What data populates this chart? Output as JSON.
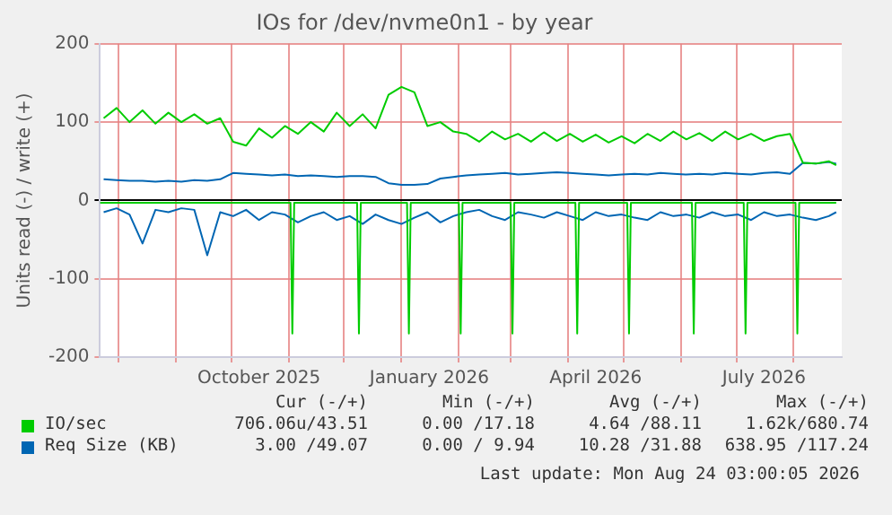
{
  "chart_data": {
    "type": "line",
    "title": "IOs for /dev/nvme0n1 - by year",
    "ylabel": "Units read (-) / write (+)",
    "x": [
      "2025-07-24",
      "2025-07-31",
      "2025-08-07",
      "2025-08-14",
      "2025-08-21",
      "2025-08-28",
      "2025-09-04",
      "2025-09-11",
      "2025-09-18",
      "2025-09-25",
      "2025-10-02",
      "2025-10-09",
      "2025-10-16",
      "2025-10-23",
      "2025-10-30",
      "2025-11-06",
      "2025-11-13",
      "2025-11-20",
      "2025-11-27",
      "2025-12-04",
      "2025-12-11",
      "2025-12-18",
      "2025-12-25",
      "2026-01-01",
      "2026-01-08",
      "2026-01-15",
      "2026-01-22",
      "2026-01-29",
      "2026-02-05",
      "2026-02-12",
      "2026-02-19",
      "2026-02-26",
      "2026-03-05",
      "2026-03-12",
      "2026-03-19",
      "2026-03-26",
      "2026-04-02",
      "2026-04-09",
      "2026-04-16",
      "2026-04-23",
      "2026-04-30",
      "2026-05-07",
      "2026-05-14",
      "2026-05-21",
      "2026-05-28",
      "2026-06-04",
      "2026-06-11",
      "2026-06-18",
      "2026-06-25",
      "2026-07-02",
      "2026-07-09",
      "2026-07-16",
      "2026-07-23",
      "2026-07-30",
      "2026-08-06",
      "2026-08-13",
      "2026-08-20",
      "2026-08-24"
    ],
    "series": [
      {
        "name": "IO/sec",
        "color": "#00cc00",
        "values": [
          105,
          118,
          100,
          115,
          98,
          112,
          100,
          110,
          98,
          105,
          75,
          70,
          92,
          80,
          95,
          85,
          100,
          88,
          112,
          95,
          110,
          92,
          135,
          145,
          138,
          95,
          100,
          88,
          85,
          75,
          88,
          78,
          85,
          75,
          87,
          76,
          85,
          75,
          84,
          74,
          82,
          73,
          85,
          76,
          88,
          78,
          86,
          76,
          88,
          78,
          85,
          76,
          82,
          85,
          48,
          47,
          50,
          45
        ]
      },
      {
        "color": "#00cc00",
        "x": [
          "2025-07-22",
          "2025-11-02",
          "2025-11-03",
          "2025-11-04",
          "2025-12-08",
          "2025-12-09",
          "2025-12-10",
          "2026-01-04",
          "2026-01-05",
          "2026-01-06",
          "2026-02-01",
          "2026-02-02",
          "2026-02-03",
          "2026-03-01",
          "2026-03-02",
          "2026-03-03",
          "2026-04-05",
          "2026-04-06",
          "2026-04-07",
          "2026-05-03",
          "2026-05-04",
          "2026-05-05",
          "2026-06-07",
          "2026-06-08",
          "2026-06-09",
          "2026-07-05",
          "2026-07-06",
          "2026-07-07",
          "2026-08-02",
          "2026-08-03",
          "2026-08-04",
          "2026-08-24"
        ],
        "values": [
          -3,
          -3,
          -170,
          -3,
          -3,
          -170,
          -3,
          -3,
          -170,
          -3,
          -3,
          -170,
          -3,
          -3,
          -170,
          -3,
          -3,
          -170,
          -3,
          -3,
          -170,
          -3,
          -3,
          -170,
          -3,
          -3,
          -170,
          -3,
          -3,
          -170,
          -3,
          -3
        ]
      },
      {
        "name": "Req Size (KB)",
        "color": "#0066b3",
        "values": [
          27,
          26,
          25,
          25,
          24,
          25,
          24,
          26,
          25,
          27,
          35,
          34,
          33,
          32,
          33,
          31,
          32,
          31,
          30,
          31,
          31,
          30,
          22,
          20,
          20,
          21,
          28,
          30,
          32,
          33,
          34,
          35,
          33,
          34,
          35,
          36,
          35,
          34,
          33,
          32,
          33,
          34,
          33,
          35,
          34,
          33,
          34,
          33,
          35,
          34,
          33,
          35,
          36,
          34,
          48,
          47,
          49,
          47
        ]
      },
      {
        "color": "#0066b3",
        "values": [
          -15,
          -10,
          -18,
          -55,
          -12,
          -15,
          -10,
          -12,
          -70,
          -15,
          -20,
          -12,
          -25,
          -15,
          -18,
          -28,
          -20,
          -15,
          -25,
          -20,
          -30,
          -18,
          -25,
          -30,
          -22,
          -15,
          -28,
          -20,
          -15,
          -12,
          -20,
          -25,
          -15,
          -18,
          -22,
          -15,
          -20,
          -25,
          -15,
          -20,
          -18,
          -22,
          -25,
          -15,
          -20,
          -18,
          -22,
          -15,
          -20,
          -18,
          -25,
          -15,
          -20,
          -18,
          -22,
          -25,
          -20,
          -15
        ]
      }
    ],
    "xlim": [
      "2025-07-22",
      "2026-08-27"
    ],
    "xticks": [
      {
        "value": "2025-08-01",
        "label": null
      },
      {
        "value": "2025-09-01",
        "label": null
      },
      {
        "value": "2025-10-01",
        "label": null
      },
      {
        "value": "2025-10-16",
        "label": "October 2025"
      },
      {
        "value": "2025-11-01",
        "label": null
      },
      {
        "value": "2025-12-01",
        "label": null
      },
      {
        "value": "2026-01-01",
        "label": null
      },
      {
        "value": "2026-01-16",
        "label": "January 2026"
      },
      {
        "value": "2026-02-01",
        "label": null
      },
      {
        "value": "2026-03-01",
        "label": null
      },
      {
        "value": "2026-04-01",
        "label": null
      },
      {
        "value": "2026-04-16",
        "label": "April 2026"
      },
      {
        "value": "2026-05-01",
        "label": null
      },
      {
        "value": "2026-06-01",
        "label": null
      },
      {
        "value": "2026-07-01",
        "label": null
      },
      {
        "value": "2026-07-16",
        "label": "July 2026"
      },
      {
        "value": "2026-08-01",
        "label": null
      }
    ],
    "ylim": [
      -200,
      200
    ],
    "yticks": [
      -200,
      -100,
      0,
      100,
      200
    ],
    "grid": true,
    "legend": "bottom",
    "marker": "none",
    "line_style": "solid",
    "annotations": [
      "Cur (-/+)",
      "Min (-/+)",
      "Avg (-/+)",
      "Max (-/+)",
      "706.06u/43.51",
      "0.00 /17.18",
      "4.64 /88.11",
      "1.62k/680.74",
      "3.00 /49.07",
      "0.00 / 9.94",
      "10.28 /31.88",
      "638.95 /117.24",
      "Last update: Mon Aug 24 03:00:05 2026"
    ]
  }
}
